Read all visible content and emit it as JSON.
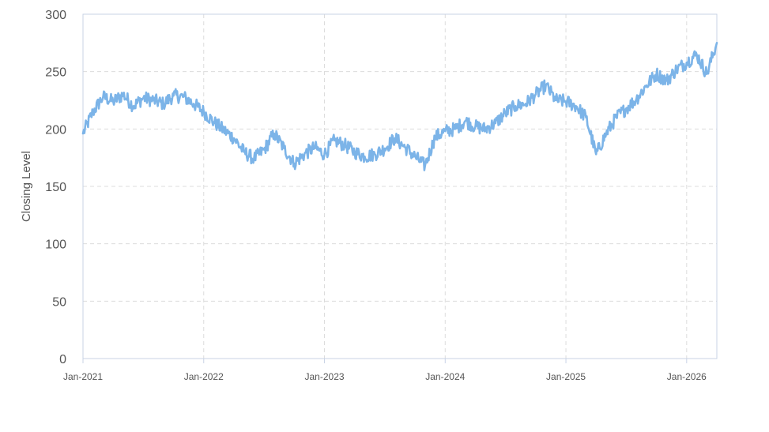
{
  "chart_data": {
    "type": "line",
    "title": "",
    "xlabel": "",
    "ylabel": "Closing Level",
    "ylim": [
      0,
      300
    ],
    "y_ticks": [
      "0",
      "50",
      "100",
      "150",
      "200",
      "250",
      "300"
    ],
    "x_ticks": [
      {
        "label": "Jan-2021",
        "x": "2021-01"
      },
      {
        "label": "Jan-2022",
        "x": "2022-01"
      },
      {
        "label": "Jan-2023",
        "x": "2023-01"
      },
      {
        "label": "Jan-2024",
        "x": "2024-01"
      },
      {
        "label": "Jan-2025",
        "x": "2025-01"
      },
      {
        "label": "Jan-2026",
        "x": "2026-01"
      }
    ],
    "xlim": [
      "2021-01",
      "2026-04"
    ],
    "grid": true,
    "line_color": "#7cb4e8",
    "series": [
      {
        "x": [
          "2021-01",
          "2021-02",
          "2021-03",
          "2021-04",
          "2021-05",
          "2021-06",
          "2021-07",
          "2021-08",
          "2021-09",
          "2021-10",
          "2021-11",
          "2021-12",
          "2022-01",
          "2022-02",
          "2022-03",
          "2022-04",
          "2022-05",
          "2022-06",
          "2022-07",
          "2022-08",
          "2022-09",
          "2022-10",
          "2022-11",
          "2022-12",
          "2023-01",
          "2023-02",
          "2023-03",
          "2023-04",
          "2023-05",
          "2023-06",
          "2023-07",
          "2023-08",
          "2023-09",
          "2023-10",
          "2023-11",
          "2023-12",
          "2024-01",
          "2024-02",
          "2024-03",
          "2024-04",
          "2024-05",
          "2024-06",
          "2024-07",
          "2024-08",
          "2024-09",
          "2024-10",
          "2024-11",
          "2024-12",
          "2025-01",
          "2025-02",
          "2025-03",
          "2025-04",
          "2025-05",
          "2025-06",
          "2025-07",
          "2025-08",
          "2025-09",
          "2025-10",
          "2025-11",
          "2025-12",
          "2026-01",
          "2026-02",
          "2026-03",
          "2026-04"
        ],
        "values": [
          196,
          215,
          228,
          224,
          230,
          220,
          227,
          225,
          222,
          229,
          228,
          222,
          215,
          206,
          199,
          192,
          180,
          174,
          182,
          196,
          183,
          170,
          178,
          184,
          178,
          190,
          186,
          180,
          176,
          178,
          183,
          192,
          184,
          176,
          168,
          193,
          198,
          200,
          207,
          202,
          200,
          205,
          214,
          220,
          222,
          230,
          238,
          225,
          224,
          220,
          210,
          178,
          196,
          210,
          218,
          226,
          238,
          248,
          242,
          252,
          258,
          265,
          248,
          275
        ]
      }
    ]
  }
}
